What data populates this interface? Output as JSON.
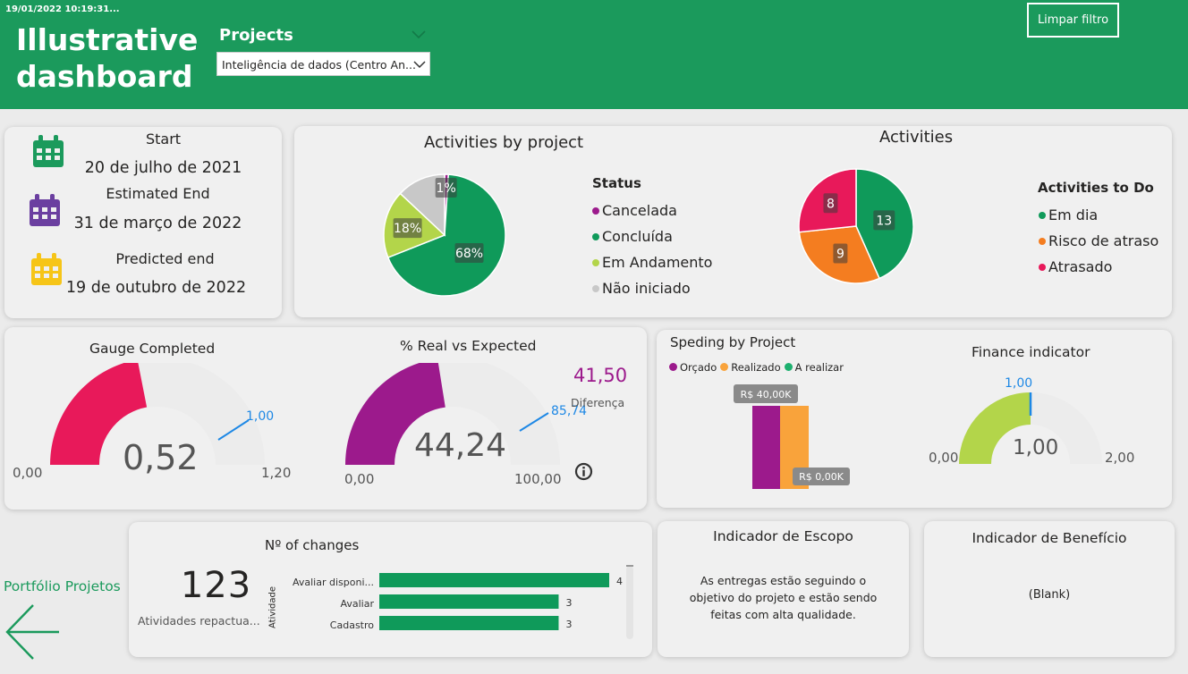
{
  "header": {
    "timestamp": "19/01/2022 10:19:31...",
    "title_line1": "Illustrative",
    "title_line2": "dashboard",
    "filter_label": "Projects",
    "filter_value": "Inteligência de dados (Centro An...",
    "clear_filter_label": "Limpar filtro",
    "color": "#1b9a5c"
  },
  "dates": {
    "start_label": "Start",
    "start_value": "20 de julho de 2021",
    "estimated_label": "Estimated End",
    "estimated_value": "31 de março de 2022",
    "predicted_label": "Predicted end",
    "predicted_value": "19 de outubro de 2022",
    "icon_colors": [
      "#1b9a5c",
      "#6b3fa0",
      "#f6c518"
    ]
  },
  "activities_by_project": {
    "title": "Activities by project",
    "legend_title": "Status",
    "legend": [
      {
        "label": "Cancelada",
        "color": "#9c1a8c"
      },
      {
        "label": "Concluída",
        "color": "#0f9a5a"
      },
      {
        "label": "Em Andamento",
        "color": "#b3d54a"
      },
      {
        "label": "Não iniciado",
        "color": "#c8c8c8"
      }
    ],
    "slice_labels": [
      "1%",
      "68%",
      "18%"
    ]
  },
  "activities": {
    "title": "Activities",
    "legend_title": "Activities to Do",
    "legend": [
      {
        "label": "Em dia",
        "color": "#0f9a5a"
      },
      {
        "label": "Risco de atraso",
        "color": "#f47d20"
      },
      {
        "label": "Atrasado",
        "color": "#e8195a"
      }
    ],
    "slice_labels": [
      "13",
      "9",
      "8"
    ]
  },
  "gauge_completed": {
    "title": "Gauge Completed",
    "value": "0,52",
    "min": "0,00",
    "max": "1,20",
    "target": "1,00",
    "color": "#e8195a"
  },
  "real_vs_expected": {
    "title": "% Real vs Expected",
    "value": "44,24",
    "min": "0,00",
    "max": "100,00",
    "target": "85,74",
    "diff_value": "41,50",
    "diff_label": "Diferença",
    "color": "#9c1a8c"
  },
  "spending": {
    "title": "Speding by Project",
    "legend": [
      {
        "label": "Orçado",
        "color": "#9c1a8c"
      },
      {
        "label": "Realizado",
        "color": "#f9a33b"
      },
      {
        "label": "A realizar",
        "color": "#1db06f"
      }
    ],
    "label_top": "R$ 40,00K",
    "label_bottom": "R$ 0,00K"
  },
  "finance": {
    "title": "Finance indicator",
    "value": "1,00",
    "min": "0,00",
    "max": "2,00",
    "target": "1,00",
    "color": "#b3d54a"
  },
  "nav": {
    "portfolio_label": "Portfólio Projetos"
  },
  "kpi": {
    "value": "123",
    "label": "Atividades repactua..."
  },
  "changes": {
    "title": "Nº of changes",
    "axis_label": "Atividade"
  },
  "scope": {
    "title": "Indicador de Escopo",
    "line1": "As entregas estão seguindo o",
    "line2": "objetivo do projeto e estão sendo",
    "line3": "feitas com alta qualidade."
  },
  "benefit": {
    "title": "Indicador de Benefício",
    "text": "(Blank)"
  },
  "chart_data": [
    {
      "type": "pie",
      "title": "Activities by project",
      "legend_title": "Status",
      "categories": [
        "Cancelada",
        "Concluída",
        "Em Andamento",
        "Não iniciado"
      ],
      "values": [
        1,
        68,
        18,
        13
      ]
    },
    {
      "type": "pie",
      "title": "Activities",
      "legend_title": "Activities to Do",
      "categories": [
        "Em dia",
        "Risco de atraso",
        "Atrasado"
      ],
      "values": [
        13,
        9,
        8
      ]
    },
    {
      "type": "bar",
      "title": "Nº of changes",
      "ylabel": "Atividade",
      "categories": [
        "Avaliar disponi...",
        "Avaliar",
        "Cadastro"
      ],
      "values": [
        4,
        3,
        3
      ]
    },
    {
      "type": "bar",
      "title": "Speding by Project",
      "series": [
        {
          "name": "Orçado",
          "values": [
            40
          ]
        },
        {
          "name": "Realizado",
          "values": [
            40
          ]
        },
        {
          "name": "A realizar",
          "values": [
            0
          ]
        }
      ]
    }
  ]
}
